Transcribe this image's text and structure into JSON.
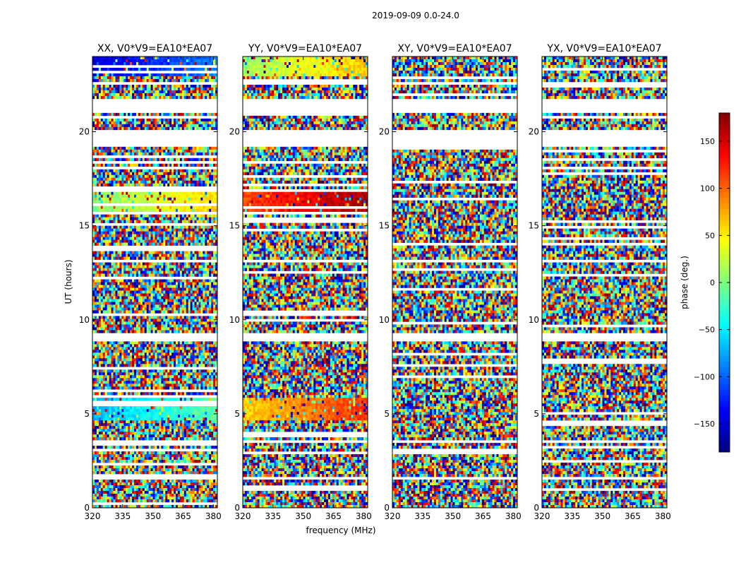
{
  "chart_data": {
    "type": "heatmap",
    "suptitle": "2019-09-09 0.0-24.0",
    "xlabel": "frequency (MHz)",
    "ylabel": "UT (hours)",
    "xlim": [
      320,
      382
    ],
    "ylim": [
      0,
      24
    ],
    "xticks": [
      "320",
      "335",
      "350",
      "365",
      "380"
    ],
    "xtick_values": [
      320,
      335,
      350,
      365,
      380
    ],
    "yticks": [
      "0",
      "5",
      "10",
      "15",
      "20"
    ],
    "ytick_values": [
      0,
      5,
      10,
      15,
      20
    ],
    "colorbar": {
      "label": "phase (deg.)",
      "range": [
        -180,
        180
      ],
      "ticks": [
        "150",
        "100",
        "50",
        "0",
        "−50",
        "−100",
        "−150"
      ],
      "tick_values": [
        150,
        100,
        50,
        0,
        -50,
        -100,
        -150
      ],
      "colormap": "jet"
    },
    "panels": [
      {
        "title": "XX, V0*V9=EA10*EA07",
        "polarization": "XX",
        "coherent_bands": [
          [
            4.7,
            5.8,
            -40
          ],
          [
            15.7,
            17.0,
            30
          ],
          [
            23.0,
            24.0,
            -120
          ]
        ]
      },
      {
        "title": "YY, V0*V9=EA10*EA07",
        "polarization": "YY",
        "coherent_bands": [
          [
            4.7,
            5.8,
            90
          ],
          [
            15.7,
            17.0,
            140
          ],
          [
            23.0,
            24.0,
            40
          ]
        ]
      },
      {
        "title": "XY, V0*V9=EA10*EA07",
        "polarization": "XY",
        "coherent_bands": []
      },
      {
        "title": "YX, V0*V9=EA10*EA07",
        "polarization": "YX",
        "coherent_bands": []
      }
    ],
    "flagged_ut_ranges": [
      [
        1.5,
        1.62
      ],
      [
        2.65,
        2.72
      ],
      [
        3.5,
        3.56
      ],
      [
        4.6,
        4.7
      ],
      [
        6.45,
        6.52
      ],
      [
        8.9,
        9.3
      ],
      [
        13.1,
        13.2
      ],
      [
        19.2,
        20.1
      ],
      [
        21.0,
        21.7
      ],
      [
        22.5,
        22.6
      ]
    ]
  }
}
